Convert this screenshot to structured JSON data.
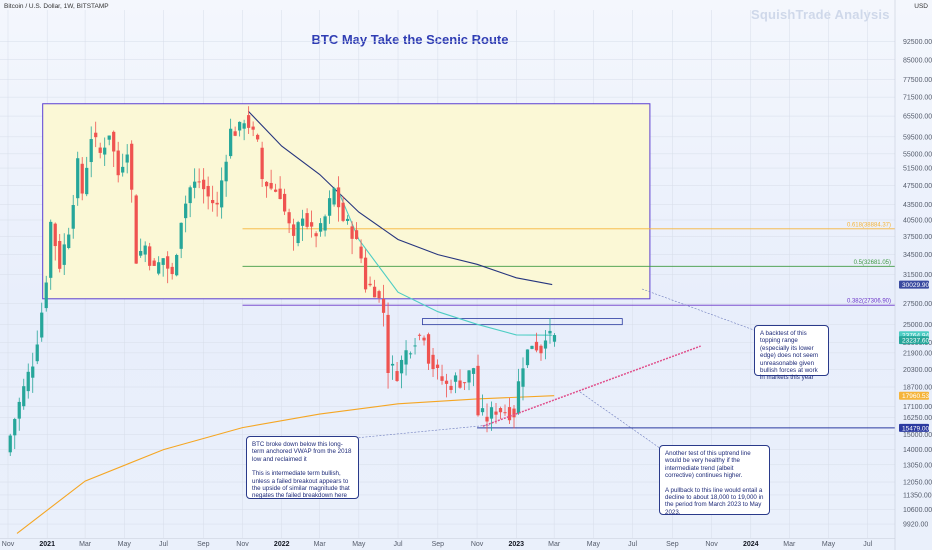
{
  "header": {
    "symbol": "Bitcoin / U.S. Dollar, 1W, BITSTAMP",
    "currency": "USD",
    "watermark": "SquishTrade Analysis",
    "title": "BTC May Take the Scenic Route"
  },
  "chart_data": {
    "type": "candlestick",
    "title": "BTC May Take the Scenic Route",
    "xlabel": "",
    "ylabel": "",
    "y_scale": "log",
    "ylim": [
      9300,
      107000
    ],
    "x_range": [
      "2020-11-01",
      "2024-07-31"
    ],
    "y_ticks": [
      92500,
      85000,
      77500,
      71500,
      65500,
      59500,
      55000,
      51500,
      47500,
      43500,
      40500,
      37500,
      34500,
      31500,
      27500,
      25000,
      23000,
      21900,
      20300,
      18700,
      17100,
      16250,
      15000,
      14000,
      13050,
      12050,
      11350,
      10600,
      9920
    ],
    "x_ticks": [
      {
        "date": "2020-11-01",
        "label": "Nov",
        "bold": false
      },
      {
        "date": "2021-01-01",
        "label": "2021",
        "bold": true
      },
      {
        "date": "2021-03-01",
        "label": "Mar",
        "bold": false
      },
      {
        "date": "2021-05-01",
        "label": "May",
        "bold": false
      },
      {
        "date": "2021-07-01",
        "label": "Jul",
        "bold": false
      },
      {
        "date": "2021-09-01",
        "label": "Sep",
        "bold": false
      },
      {
        "date": "2021-11-01",
        "label": "Nov",
        "bold": false
      },
      {
        "date": "2022-01-01",
        "label": "2022",
        "bold": true
      },
      {
        "date": "2022-03-01",
        "label": "Mar",
        "bold": false
      },
      {
        "date": "2022-05-01",
        "label": "May",
        "bold": false
      },
      {
        "date": "2022-07-01",
        "label": "Jul",
        "bold": false
      },
      {
        "date": "2022-09-01",
        "label": "Sep",
        "bold": false
      },
      {
        "date": "2022-11-01",
        "label": "Nov",
        "bold": false
      },
      {
        "date": "2023-01-01",
        "label": "2023",
        "bold": true
      },
      {
        "date": "2023-03-01",
        "label": "Mar",
        "bold": false
      },
      {
        "date": "2023-05-01",
        "label": "May",
        "bold": false
      },
      {
        "date": "2023-07-01",
        "label": "Jul",
        "bold": false
      },
      {
        "date": "2023-09-01",
        "label": "Sep",
        "bold": false
      },
      {
        "date": "2023-11-01",
        "label": "Nov",
        "bold": false
      },
      {
        "date": "2024-01-01",
        "label": "2024",
        "bold": true
      },
      {
        "date": "2024-03-01",
        "label": "Mar",
        "bold": false
      },
      {
        "date": "2024-05-01",
        "label": "May",
        "bold": false
      },
      {
        "date": "2024-07-01",
        "label": "Jul",
        "bold": false
      }
    ],
    "price_path": [
      [
        "2020-11-01",
        13800
      ],
      [
        "2020-11-15",
        16200
      ],
      [
        "2020-12-01",
        18900
      ],
      [
        "2020-12-15",
        21500
      ],
      [
        "2021-01-01",
        29000
      ],
      [
        "2021-01-10",
        40000
      ],
      [
        "2021-01-24",
        33000
      ],
      [
        "2021-02-07",
        39000
      ],
      [
        "2021-02-21",
        52000
      ],
      [
        "2021-02-28",
        46000
      ],
      [
        "2021-03-14",
        60000
      ],
      [
        "2021-03-28",
        55000
      ],
      [
        "2021-04-11",
        61000
      ],
      [
        "2021-04-25",
        50000
      ],
      [
        "2021-05-09",
        57000
      ],
      [
        "2021-05-16",
        46000
      ],
      [
        "2021-05-23",
        34000
      ],
      [
        "2021-06-06",
        36000
      ],
      [
        "2021-06-20",
        32000
      ],
      [
        "2021-07-04",
        34000
      ],
      [
        "2021-07-18",
        31000
      ],
      [
        "2021-08-01",
        41000
      ],
      [
        "2021-08-15",
        47000
      ],
      [
        "2021-08-29",
        48500
      ],
      [
        "2021-09-12",
        45000
      ],
      [
        "2021-09-26",
        43000
      ],
      [
        "2021-10-10",
        55000
      ],
      [
        "2021-10-17",
        61000
      ],
      [
        "2021-10-31",
        61500
      ],
      [
        "2021-11-07",
        65000
      ],
      [
        "2021-11-14",
        63000
      ],
      [
        "2021-11-28",
        57000
      ],
      [
        "2021-12-05",
        49000
      ],
      [
        "2021-12-19",
        47000
      ],
      [
        "2022-01-02",
        46000
      ],
      [
        "2022-01-09",
        42000
      ],
      [
        "2022-01-23",
        36500
      ],
      [
        "2022-02-06",
        42000
      ],
      [
        "2022-02-20",
        38000
      ],
      [
        "2022-03-06",
        38500
      ],
      [
        "2022-03-27",
        46500
      ],
      [
        "2022-04-10",
        40500
      ],
      [
        "2022-04-24",
        38500
      ],
      [
        "2022-05-08",
        34000
      ],
      [
        "2022-05-15",
        30000
      ],
      [
        "2022-05-29",
        29500
      ],
      [
        "2022-06-12",
        26500
      ],
      [
        "2022-06-19",
        20500
      ],
      [
        "2022-07-03",
        20000
      ],
      [
        "2022-07-17",
        22000
      ],
      [
        "2022-07-31",
        23500
      ],
      [
        "2022-08-14",
        24000
      ],
      [
        "2022-08-21",
        21500
      ],
      [
        "2022-09-04",
        19800
      ],
      [
        "2022-09-18",
        18800
      ],
      [
        "2022-10-02",
        19300
      ],
      [
        "2022-10-16",
        19200
      ],
      [
        "2022-10-30",
        20500
      ],
      [
        "2022-11-06",
        16500
      ],
      [
        "2022-11-20",
        16200
      ],
      [
        "2022-12-04",
        16900
      ],
      [
        "2022-12-18",
        16800
      ],
      [
        "2023-01-01",
        16600
      ],
      [
        "2023-01-08",
        19000
      ],
      [
        "2023-01-15",
        21000
      ],
      [
        "2023-01-29",
        23000
      ],
      [
        "2023-02-12",
        22300
      ],
      [
        "2023-02-19",
        24100
      ],
      [
        "2023-02-26",
        23400
      ]
    ],
    "overlays": [
      {
        "label": "0.618(38884.37)",
        "value": 38884.37,
        "color": "#f5b43a"
      },
      {
        "label": "0.5(32681.05)",
        "value": 32681.05,
        "color": "#3f9a43"
      },
      {
        "label": "0.382(27306.90)",
        "value": 27306.9,
        "color": "#6a34c8"
      }
    ],
    "price_tags": [
      {
        "label": "30029.90",
        "value": 30029.9,
        "color": "#3a4aa0"
      },
      {
        "label": "23764.94",
        "value": 23764.94,
        "color": "#4ecdc4"
      },
      {
        "label": "23237.60",
        "value": 23237.6,
        "color": "#26a69a"
      },
      {
        "label": "17960.53",
        "value": 17960.53,
        "color": "#f5b43a"
      },
      {
        "label": "15479.00",
        "value": 15479.0,
        "color": "#2b3aa0"
      }
    ],
    "series": [
      {
        "name": "",
        "kind": "avwap-2021-top",
        "color": "#26357e",
        "points": [
          [
            "2021-11-10",
            67000
          ],
          [
            "2022-01-01",
            57000
          ],
          [
            "2022-03-01",
            50000
          ],
          [
            "2022-05-01",
            42000
          ],
          [
            "2022-07-01",
            37000
          ],
          [
            "2022-09-01",
            34500
          ],
          [
            "2022-11-01",
            33000
          ],
          [
            "2023-01-01",
            31000
          ],
          [
            "2023-02-26",
            30030
          ]
        ]
      },
      {
        "name": "",
        "kind": "avwap-2022",
        "color": "#4ecdc4",
        "points": [
          [
            "2022-03-28",
            47000
          ],
          [
            "2022-05-01",
            37000
          ],
          [
            "2022-07-01",
            29000
          ],
          [
            "2022-09-01",
            26500
          ],
          [
            "2022-11-01",
            25000
          ],
          [
            "2023-01-01",
            23800
          ],
          [
            "2023-02-26",
            23765
          ]
        ]
      },
      {
        "name": "",
        "kind": "avwap-2018-low",
        "color": "#f5a623",
        "points": [
          [
            "2020-11-15",
            9500
          ],
          [
            "2021-03-01",
            12100
          ],
          [
            "2021-07-01",
            14000
          ],
          [
            "2021-11-01",
            15500
          ],
          [
            "2022-03-01",
            16500
          ],
          [
            "2022-07-01",
            17300
          ],
          [
            "2022-11-01",
            17700
          ],
          [
            "2023-03-01",
            17960
          ]
        ]
      }
    ],
    "annotations": [
      "A backtest of this topping range (especially its lower edge) does not seem unreasonable given bullish forces at work in markets this year",
      "BTC broke down below this long-term anchored VWAP from the 2018 low and reclaimed it",
      "This is intermediate term bullish, unless a failed breakout appears to the upside of similar magnitude that negates the failed breakdown here",
      "Another test of this uptrend line would be very healthy if the intermediate trend (albeit corrective) continues higher.",
      "A pullback to this line would entail a decline to about 18,000 to 19,000 in the period from March 2023 to May 2023."
    ]
  },
  "notes": {
    "backtest": [
      "A backtest of this topping range (especially its lower edge) does not seem unreasonable given bullish forces at work in markets this year"
    ],
    "vwap": [
      "BTC broke down below this long-term anchored VWAP from the 2018 low and reclaimed it",
      "This is intermediate term bullish, unless a failed breakout appears to the upside of similar magnitude that negates the failed breakdown here"
    ],
    "uptrend": [
      "Another test of this uptrend line would be very healthy if the intermediate trend (albeit corrective) continues higher.",
      "A pullback to this line would entail a decline to about 18,000 to 19,000 in the period from March 2023 to May 2023."
    ]
  },
  "colors": {
    "up": "#26a69a",
    "down": "#ef5350",
    "range_fill": "#fbf8d6",
    "range_border": "#5b3fd1",
    "uptrend": "#e0508c",
    "note_border": "#2a3a8a"
  }
}
